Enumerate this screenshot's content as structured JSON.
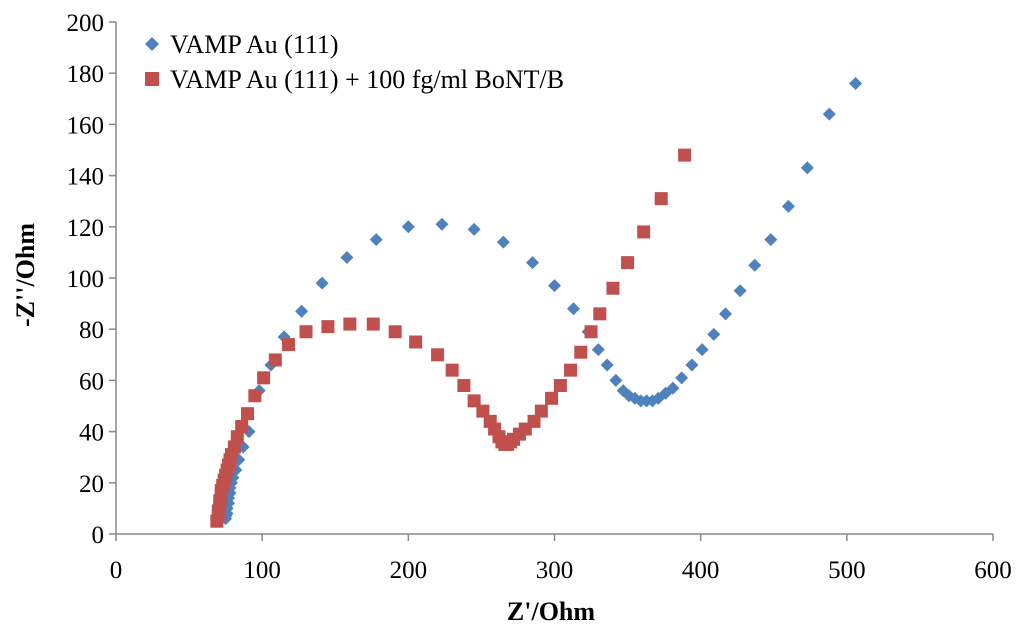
{
  "chart_data": {
    "type": "scatter",
    "title": "",
    "xlabel": "Z'/Ohm",
    "ylabel": "-Z''/Ohm",
    "xlim": [
      0,
      600
    ],
    "ylim": [
      0,
      200
    ],
    "xticks": [
      0,
      100,
      200,
      300,
      400,
      500,
      600
    ],
    "yticks": [
      0,
      20,
      40,
      60,
      80,
      100,
      120,
      140,
      160,
      180,
      200
    ],
    "grid": false,
    "legend_position": "top-left",
    "series": [
      {
        "name": "VAMP Au (111)",
        "marker": "diamond",
        "color": "#4F81BD",
        "x": [
          75,
          75,
          76,
          76,
          77,
          77,
          78,
          78,
          79,
          80,
          82,
          84,
          87,
          91,
          98,
          106,
          115,
          127,
          141,
          158,
          178,
          200,
          223,
          245,
          265,
          285,
          300,
          313,
          323,
          330,
          336,
          342,
          347,
          351,
          355,
          359,
          363,
          367,
          371,
          376,
          381,
          387,
          394,
          401,
          409,
          417,
          427,
          437,
          448,
          460,
          473,
          488,
          506
        ],
        "y": [
          6,
          7,
          8,
          10,
          12,
          14,
          16,
          18,
          20,
          22,
          25,
          29,
          34,
          40,
          56,
          66,
          77,
          87,
          98,
          108,
          115,
          120,
          121,
          119,
          114,
          106,
          97,
          88,
          79,
          72,
          66,
          60,
          56,
          54,
          53,
          52,
          52,
          52,
          53,
          55,
          57,
          61,
          66,
          72,
          78,
          86,
          95,
          105,
          115,
          128,
          143,
          164,
          176
        ]
      },
      {
        "name": "VAMP Au (111) + 100 fg/ml BoNT/B",
        "marker": "square",
        "color": "#C0504D",
        "x": [
          69,
          70,
          70,
          71,
          71,
          72,
          72,
          73,
          74,
          75,
          76,
          77,
          78,
          79,
          81,
          83,
          86,
          90,
          95,
          101,
          109,
          118,
          130,
          145,
          160,
          176,
          191,
          205,
          220,
          230,
          238,
          245,
          251,
          256,
          259,
          262,
          264,
          266,
          268,
          270,
          272,
          276,
          280,
          286,
          291,
          298,
          304,
          311,
          318,
          325,
          331,
          340,
          350,
          361,
          373,
          389
        ],
        "y": [
          5,
          7,
          9,
          11,
          13,
          15,
          17,
          19,
          21,
          23,
          25,
          27,
          29,
          31,
          34,
          38,
          42,
          47,
          54,
          61,
          68,
          74,
          79,
          81,
          82,
          82,
          79,
          75,
          70,
          64,
          58,
          52,
          48,
          44,
          41,
          38,
          36,
          35,
          35,
          36,
          37,
          39,
          41,
          44,
          48,
          53,
          58,
          64,
          71,
          79,
          86,
          96,
          106,
          118,
          131,
          148
        ]
      }
    ]
  }
}
